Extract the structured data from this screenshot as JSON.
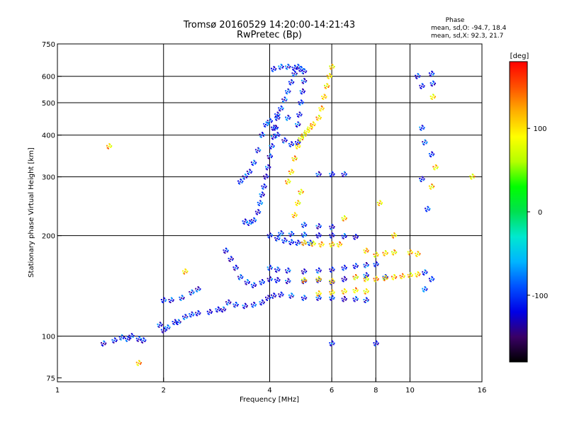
{
  "chart_data": {
    "type": "scatter",
    "title": "Tromsø 20160529 14:20:00-14:21:43",
    "subtitle": "RwPretec (Bp)",
    "xlabel": "Frequency [MHz]",
    "ylabel": "Stationary phase Virtual Height [km]",
    "x_scale": "log",
    "y_scale": "log",
    "xlim": [
      1,
      16
    ],
    "ylim": [
      73,
      750
    ],
    "x_ticks": [
      1,
      2,
      4,
      6,
      8,
      10,
      16
    ],
    "y_ticks": [
      75,
      100,
      200,
      300,
      400,
      500,
      600,
      750
    ],
    "x_gridlines": [
      2,
      4,
      6,
      8,
      10
    ],
    "y_gridlines": [
      100,
      200,
      300,
      400,
      500,
      600
    ],
    "grid": true,
    "stats": {
      "heading": "Phase",
      "line_o": "mean, sd,O: -94.7, 18.4",
      "line_x": "mean, sd,X:  92.3, 21.7"
    },
    "colorbar": {
      "label": "[deg]",
      "range": [
        -180,
        180
      ],
      "ticks": [
        {
          "value": 100,
          "label": "100"
        },
        {
          "value": 0,
          "label": "0"
        },
        {
          "value": -100,
          "label": "-100"
        }
      ],
      "colormap": [
        "#000000",
        "#3a0066",
        "#0000e6",
        "#0050ff",
        "#00b4ff",
        "#00e8d0",
        "#00e050",
        "#00ff00",
        "#b4ff00",
        "#ffff00",
        "#ffb000",
        "#ff5000",
        "#ff0000"
      ]
    },
    "series": [
      {
        "values": [
          {
            "x": 1.35,
            "y": 95
          },
          {
            "x": 1.45,
            "y": 97
          },
          {
            "x": 1.52,
            "y": 99
          },
          {
            "x": 1.58,
            "y": 98
          },
          {
            "x": 1.62,
            "y": 100
          },
          {
            "x": 1.7,
            "y": 98
          },
          {
            "x": 1.75,
            "y": 97
          },
          {
            "x": 1.95,
            "y": 108
          },
          {
            "x": 2.0,
            "y": 104
          },
          {
            "x": 2.05,
            "y": 106
          },
          {
            "x": 2.15,
            "y": 110
          },
          {
            "x": 2.2,
            "y": 110
          },
          {
            "x": 2.3,
            "y": 114
          },
          {
            "x": 2.4,
            "y": 116
          },
          {
            "x": 2.5,
            "y": 117
          },
          {
            "x": 2.7,
            "y": 118
          },
          {
            "x": 2.85,
            "y": 120
          },
          {
            "x": 2.95,
            "y": 120
          },
          {
            "x": 2.0,
            "y": 128
          },
          {
            "x": 2.1,
            "y": 128
          },
          {
            "x": 2.25,
            "y": 130
          },
          {
            "x": 2.4,
            "y": 135
          },
          {
            "x": 2.5,
            "y": 138
          },
          {
            "x": 3.05,
            "y": 126
          },
          {
            "x": 3.2,
            "y": 124
          },
          {
            "x": 3.4,
            "y": 123
          },
          {
            "x": 3.6,
            "y": 124
          },
          {
            "x": 3.8,
            "y": 126
          },
          {
            "x": 3.95,
            "y": 130
          },
          {
            "x": 4.1,
            "y": 132
          },
          {
            "x": 4.3,
            "y": 133
          },
          {
            "x": 4.6,
            "y": 132
          },
          {
            "x": 5.0,
            "y": 130
          },
          {
            "x": 5.5,
            "y": 130
          },
          {
            "x": 6.0,
            "y": 130
          },
          {
            "x": 6.5,
            "y": 129
          },
          {
            "x": 7.0,
            "y": 129
          },
          {
            "x": 7.5,
            "y": 128
          },
          {
            "x": 3.0,
            "y": 180
          },
          {
            "x": 3.1,
            "y": 170
          },
          {
            "x": 3.2,
            "y": 160
          },
          {
            "x": 3.3,
            "y": 150
          },
          {
            "x": 3.45,
            "y": 145
          },
          {
            "x": 3.6,
            "y": 142
          },
          {
            "x": 3.8,
            "y": 145
          },
          {
            "x": 4.0,
            "y": 148
          },
          {
            "x": 4.2,
            "y": 147
          },
          {
            "x": 4.5,
            "y": 146
          },
          {
            "x": 5.0,
            "y": 146
          },
          {
            "x": 5.5,
            "y": 147
          },
          {
            "x": 6.0,
            "y": 145
          },
          {
            "x": 6.5,
            "y": 148
          },
          {
            "x": 7.0,
            "y": 150
          },
          {
            "x": 7.5,
            "y": 152
          },
          {
            "x": 4.0,
            "y": 200
          },
          {
            "x": 4.2,
            "y": 196
          },
          {
            "x": 4.4,
            "y": 193
          },
          {
            "x": 4.6,
            "y": 191
          },
          {
            "x": 4.8,
            "y": 190
          },
          {
            "x": 5.0,
            "y": 190
          },
          {
            "x": 5.2,
            "y": 190
          },
          {
            "x": 4.0,
            "y": 160
          },
          {
            "x": 4.2,
            "y": 158
          },
          {
            "x": 4.5,
            "y": 157
          },
          {
            "x": 5.0,
            "y": 156
          },
          {
            "x": 5.5,
            "y": 157
          },
          {
            "x": 6.0,
            "y": 158
          },
          {
            "x": 6.5,
            "y": 160
          },
          {
            "x": 7.0,
            "y": 162
          },
          {
            "x": 7.5,
            "y": 163
          },
          {
            "x": 8.0,
            "y": 164
          },
          {
            "x": 4.3,
            "y": 203
          },
          {
            "x": 4.6,
            "y": 202
          },
          {
            "x": 5.0,
            "y": 201
          },
          {
            "x": 5.5,
            "y": 200
          },
          {
            "x": 6.0,
            "y": 200
          },
          {
            "x": 6.5,
            "y": 199
          },
          {
            "x": 7.0,
            "y": 198
          },
          {
            "x": 3.4,
            "y": 220
          },
          {
            "x": 3.5,
            "y": 218
          },
          {
            "x": 3.6,
            "y": 222
          },
          {
            "x": 3.7,
            "y": 235
          },
          {
            "x": 3.75,
            "y": 250
          },
          {
            "x": 3.8,
            "y": 265
          },
          {
            "x": 3.85,
            "y": 280
          },
          {
            "x": 3.9,
            "y": 300
          },
          {
            "x": 3.95,
            "y": 320
          },
          {
            "x": 4.0,
            "y": 345
          },
          {
            "x": 4.05,
            "y": 370
          },
          {
            "x": 4.1,
            "y": 395
          },
          {
            "x": 4.15,
            "y": 420
          },
          {
            "x": 4.2,
            "y": 450
          },
          {
            "x": 4.3,
            "y": 480
          },
          {
            "x": 4.4,
            "y": 510
          },
          {
            "x": 4.5,
            "y": 540
          },
          {
            "x": 4.6,
            "y": 575
          },
          {
            "x": 4.7,
            "y": 610
          },
          {
            "x": 4.8,
            "y": 640
          },
          {
            "x": 3.3,
            "y": 290
          },
          {
            "x": 3.4,
            "y": 300
          },
          {
            "x": 3.5,
            "y": 310
          },
          {
            "x": 3.6,
            "y": 330
          },
          {
            "x": 3.7,
            "y": 360
          },
          {
            "x": 3.8,
            "y": 400
          },
          {
            "x": 3.9,
            "y": 430
          },
          {
            "x": 4.1,
            "y": 630
          },
          {
            "x": 4.3,
            "y": 640
          },
          {
            "x": 4.5,
            "y": 640
          },
          {
            "x": 4.7,
            "y": 635
          },
          {
            "x": 4.9,
            "y": 630
          },
          {
            "x": 5.0,
            "y": 620
          },
          {
            "x": 5.0,
            "y": 580
          },
          {
            "x": 4.95,
            "y": 540
          },
          {
            "x": 4.9,
            "y": 500
          },
          {
            "x": 4.85,
            "y": 460
          },
          {
            "x": 4.8,
            "y": 430
          },
          {
            "x": 4.0,
            "y": 440
          },
          {
            "x": 4.1,
            "y": 420
          },
          {
            "x": 4.2,
            "y": 400
          },
          {
            "x": 4.4,
            "y": 385
          },
          {
            "x": 4.6,
            "y": 375
          },
          {
            "x": 4.8,
            "y": 380
          },
          {
            "x": 5.0,
            "y": 400
          },
          {
            "x": 4.2,
            "y": 460
          },
          {
            "x": 4.5,
            "y": 450
          },
          {
            "x": 5.5,
            "y": 305
          },
          {
            "x": 6.0,
            "y": 305
          },
          {
            "x": 6.5,
            "y": 305
          },
          {
            "x": 5.0,
            "y": 215
          },
          {
            "x": 5.5,
            "y": 213
          },
          {
            "x": 6.0,
            "y": 212
          },
          {
            "x": 10.5,
            "y": 600
          },
          {
            "x": 10.8,
            "y": 560
          },
          {
            "x": 10.8,
            "y": 420
          },
          {
            "x": 11.0,
            "y": 380
          },
          {
            "x": 11.5,
            "y": 350
          },
          {
            "x": 10.8,
            "y": 295
          },
          {
            "x": 11.2,
            "y": 240
          },
          {
            "x": 11.5,
            "y": 610
          },
          {
            "x": 11.6,
            "y": 570
          },
          {
            "x": 11.0,
            "y": 155
          },
          {
            "x": 11.5,
            "y": 148
          },
          {
            "x": 11.0,
            "y": 138
          },
          {
            "x": 8.0,
            "y": 95
          },
          {
            "x": 6.0,
            "y": 95
          },
          {
            "x": 8.5,
            "y": 150
          }
        ]
      },
      {
        "values": [
          {
            "x": 4.5,
            "y": 290
          },
          {
            "x": 4.6,
            "y": 310
          },
          {
            "x": 4.7,
            "y": 340
          },
          {
            "x": 4.8,
            "y": 370
          },
          {
            "x": 4.9,
            "y": 390
          },
          {
            "x": 5.0,
            "y": 400
          },
          {
            "x": 5.1,
            "y": 410
          },
          {
            "x": 5.2,
            "y": 420
          },
          {
            "x": 5.3,
            "y": 430
          },
          {
            "x": 5.5,
            "y": 450
          },
          {
            "x": 5.6,
            "y": 480
          },
          {
            "x": 5.7,
            "y": 520
          },
          {
            "x": 5.8,
            "y": 560
          },
          {
            "x": 5.9,
            "y": 600
          },
          {
            "x": 6.0,
            "y": 640
          },
          {
            "x": 4.7,
            "y": 230
          },
          {
            "x": 4.8,
            "y": 250
          },
          {
            "x": 4.9,
            "y": 270
          },
          {
            "x": 5.0,
            "y": 190
          },
          {
            "x": 5.3,
            "y": 189
          },
          {
            "x": 5.6,
            "y": 188
          },
          {
            "x": 6.0,
            "y": 188
          },
          {
            "x": 6.3,
            "y": 188
          },
          {
            "x": 5.5,
            "y": 134
          },
          {
            "x": 6.0,
            "y": 135
          },
          {
            "x": 6.5,
            "y": 136
          },
          {
            "x": 7.0,
            "y": 137
          },
          {
            "x": 7.5,
            "y": 136
          },
          {
            "x": 8.0,
            "y": 175
          },
          {
            "x": 8.5,
            "y": 177
          },
          {
            "x": 9.0,
            "y": 178
          },
          {
            "x": 8.0,
            "y": 148
          },
          {
            "x": 8.5,
            "y": 149
          },
          {
            "x": 9.0,
            "y": 150
          },
          {
            "x": 9.5,
            "y": 151
          },
          {
            "x": 10.0,
            "y": 152
          },
          {
            "x": 10.5,
            "y": 153
          },
          {
            "x": 10.0,
            "y": 178
          },
          {
            "x": 10.5,
            "y": 176
          },
          {
            "x": 5.0,
            "y": 147
          },
          {
            "x": 5.5,
            "y": 148
          },
          {
            "x": 6.0,
            "y": 146
          },
          {
            "x": 7.0,
            "y": 150
          },
          {
            "x": 7.5,
            "y": 148
          },
          {
            "x": 11.5,
            "y": 280
          },
          {
            "x": 11.8,
            "y": 320
          },
          {
            "x": 11.6,
            "y": 520
          },
          {
            "x": 6.5,
            "y": 225
          },
          {
            "x": 1.7,
            "y": 83
          },
          {
            "x": 1.4,
            "y": 370
          },
          {
            "x": 2.3,
            "y": 156
          },
          {
            "x": 15.0,
            "y": 300
          },
          {
            "x": 9.0,
            "y": 200
          },
          {
            "x": 8.2,
            "y": 250
          },
          {
            "x": 7.5,
            "y": 180
          }
        ]
      }
    ]
  }
}
